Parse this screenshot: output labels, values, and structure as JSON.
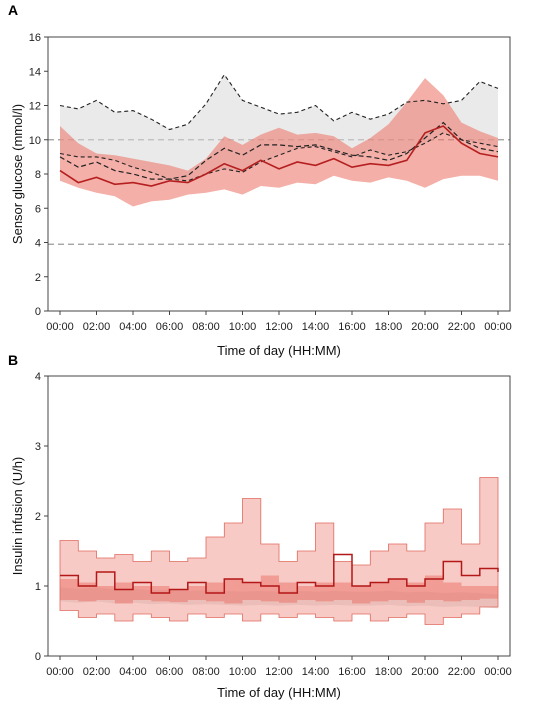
{
  "chart_data": [
    {
      "panel_label": "A",
      "type": "area",
      "xlabel": "Time of day (HH:MM)",
      "ylabel": "Sensor glucose (mmol/l)",
      "ylim": [
        0,
        16
      ],
      "yticks": [
        "0",
        "2",
        "4",
        "6",
        "8",
        "10",
        "12",
        "14",
        "16"
      ],
      "xticks": [
        "00:00",
        "02:00",
        "04:00",
        "06:00",
        "08:00",
        "10:00",
        "12:00",
        "14:00",
        "16:00",
        "18:00",
        "20:00",
        "22:00",
        "00:00"
      ],
      "grid": false,
      "reference_lines": [
        3.9,
        10.0
      ],
      "x_hours": [
        0,
        1,
        2,
        3,
        4,
        5,
        6,
        7,
        8,
        9,
        10,
        11,
        12,
        13,
        14,
        15,
        16,
        17,
        18,
        19,
        20,
        21,
        22,
        23,
        24
      ],
      "series": [
        {
          "style": "grey band upper (dashed)",
          "values": [
            12.0,
            11.8,
            12.3,
            11.6,
            11.7,
            11.2,
            10.6,
            10.9,
            12.1,
            13.8,
            12.3,
            11.9,
            11.5,
            11.6,
            12.0,
            11.1,
            11.6,
            11.2,
            11.5,
            12.2,
            12.3,
            12.1,
            12.3,
            13.4,
            13.0
          ]
        },
        {
          "style": "grey band lower (dashed)",
          "values": [
            9.2,
            9.0,
            9.0,
            8.8,
            8.4,
            8.1,
            7.7,
            7.6,
            8.0,
            8.3,
            8.1,
            8.7,
            9.1,
            9.5,
            9.6,
            9.3,
            9.0,
            9.4,
            9.1,
            9.3,
            9.8,
            10.4,
            10.0,
            9.8,
            9.6
          ]
        },
        {
          "style": "red band upper",
          "values": [
            10.8,
            9.8,
            9.2,
            9.1,
            8.9,
            8.7,
            8.5,
            8.2,
            8.9,
            10.2,
            9.7,
            10.3,
            10.7,
            10.3,
            10.4,
            10.2,
            9.5,
            10.1,
            10.9,
            12.2,
            13.6,
            12.6,
            11.0,
            10.5,
            10.1
          ]
        },
        {
          "style": "red band lower",
          "values": [
            7.6,
            7.2,
            6.9,
            6.7,
            6.1,
            6.4,
            6.5,
            6.8,
            6.9,
            7.1,
            6.8,
            7.3,
            7.2,
            7.5,
            7.4,
            7.9,
            7.6,
            7.5,
            7.8,
            7.6,
            7.2,
            7.7,
            7.9,
            7.9,
            7.6
          ]
        },
        {
          "style": "red median line",
          "values": [
            8.2,
            7.5,
            7.8,
            7.4,
            7.5,
            7.3,
            7.6,
            7.5,
            8.0,
            8.6,
            8.2,
            8.8,
            8.3,
            8.7,
            8.5,
            8.9,
            8.4,
            8.6,
            8.5,
            8.8,
            10.4,
            10.8,
            9.8,
            9.2,
            9.0
          ]
        },
        {
          "style": "grey median (dashed)",
          "values": [
            9.0,
            8.4,
            8.7,
            8.2,
            8.0,
            7.7,
            7.7,
            7.9,
            8.8,
            9.5,
            9.1,
            9.7,
            9.7,
            9.6,
            9.7,
            9.4,
            9.1,
            9.0,
            8.8,
            9.2,
            10.1,
            11.0,
            10.0,
            9.5,
            9.3
          ]
        }
      ]
    },
    {
      "panel_label": "B",
      "type": "area",
      "xlabel": "Time of day (HH:MM)",
      "ylabel": "Insulin infusion (U/h)",
      "ylim": [
        0,
        4
      ],
      "yticks": [
        "0",
        "1",
        "2",
        "3",
        "4"
      ],
      "xticks": [
        "00:00",
        "02:00",
        "04:00",
        "06:00",
        "08:00",
        "10:00",
        "12:00",
        "14:00",
        "16:00",
        "18:00",
        "20:00",
        "22:00",
        "00:00"
      ],
      "grid": false,
      "x_hours": [
        0,
        1,
        2,
        3,
        4,
        5,
        6,
        7,
        8,
        9,
        10,
        11,
        12,
        13,
        14,
        15,
        16,
        17,
        18,
        19,
        20,
        21,
        22,
        23,
        24
      ],
      "series": [
        {
          "style": "light red band upper (step)",
          "values": [
            1.65,
            1.5,
            1.4,
            1.45,
            1.35,
            1.5,
            1.35,
            1.4,
            1.7,
            1.9,
            2.25,
            1.6,
            1.35,
            1.5,
            1.9,
            1.35,
            1.3,
            1.5,
            1.6,
            1.5,
            1.9,
            2.1,
            1.6,
            2.55,
            1.9
          ]
        },
        {
          "style": "light red band lower (step)",
          "values": [
            0.65,
            0.55,
            0.6,
            0.5,
            0.6,
            0.55,
            0.5,
            0.6,
            0.55,
            0.6,
            0.5,
            0.6,
            0.55,
            0.6,
            0.55,
            0.5,
            0.6,
            0.5,
            0.55,
            0.6,
            0.45,
            0.55,
            0.6,
            0.7,
            0.75
          ]
        },
        {
          "style": "red band upper (step)",
          "values": [
            1.1,
            1.05,
            1.0,
            1.05,
            1.0,
            1.0,
            0.95,
            1.0,
            1.05,
            1.1,
            1.05,
            1.15,
            1.05,
            1.0,
            1.05,
            1.05,
            1.0,
            1.05,
            1.1,
            1.05,
            1.15,
            1.05,
            1.0,
            1.0,
            1.0
          ]
        },
        {
          "style": "red band lower (step)",
          "values": [
            0.8,
            0.78,
            0.8,
            0.75,
            0.8,
            0.78,
            0.77,
            0.8,
            0.78,
            0.75,
            0.8,
            0.78,
            0.76,
            0.8,
            0.78,
            0.8,
            0.75,
            0.78,
            0.8,
            0.76,
            0.8,
            0.78,
            0.8,
            0.82,
            0.8
          ]
        },
        {
          "style": "dark red median (step)",
          "values": [
            1.15,
            1.0,
            1.2,
            0.95,
            1.05,
            0.9,
            0.95,
            1.05,
            0.9,
            1.1,
            1.05,
            1.0,
            0.9,
            1.05,
            1.0,
            1.45,
            1.0,
            1.05,
            1.1,
            1.0,
            1.1,
            1.35,
            1.15,
            1.25,
            1.2
          ]
        },
        {
          "style": "grey band (reference)",
          "values": [
            0.9,
            0.88,
            0.9,
            0.87,
            0.88,
            0.86,
            0.87,
            0.85,
            0.86,
            0.85,
            0.84,
            0.85,
            0.84,
            0.85,
            0.84,
            0.85,
            0.84,
            0.84,
            0.85,
            0.83,
            0.84,
            0.82,
            0.83,
            0.82,
            0.8
          ]
        }
      ]
    }
  ]
}
